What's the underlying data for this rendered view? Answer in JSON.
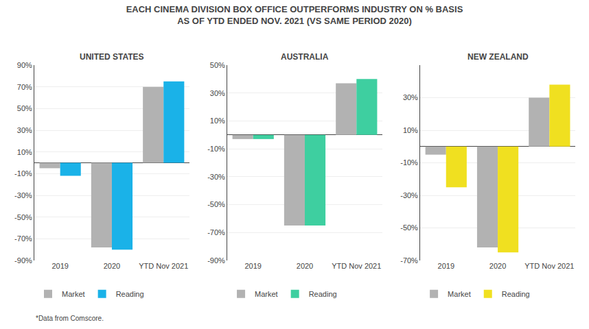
{
  "title": "EACH CINEMA DIVISION BOX OFFICE OUTPERFORMS INDUSTRY ON % BASIS",
  "subtitle": "AS OF YTD ENDED NOV. 2021 (VS SAME PERIOD 2020)",
  "annotations": [
    "*Data from Comscore."
  ],
  "chart_data": [
    {
      "type": "bar",
      "title": "UNITED STATES",
      "categories": [
        "2019",
        "2020",
        "YTD Nov 2021"
      ],
      "series": [
        {
          "name": "Market",
          "color": "#b2b2b2",
          "values": [
            -5,
            -78,
            70
          ]
        },
        {
          "name": "Reading",
          "color": "#1ab2e8",
          "values": [
            -12,
            -80,
            75
          ]
        }
      ],
      "ylim": [
        -90,
        90
      ],
      "yticks": [
        {
          "value": -90,
          "label": "-90%"
        },
        {
          "value": -70,
          "label": "-70%"
        },
        {
          "value": -50,
          "label": "-50%"
        },
        {
          "value": -30,
          "label": "-30%"
        },
        {
          "value": -10,
          "label": "-10%"
        },
        {
          "value": 10,
          "label": "10%"
        },
        {
          "value": 30,
          "label": "30%"
        },
        {
          "value": 50,
          "label": "50%"
        },
        {
          "value": 70,
          "label": "70%"
        },
        {
          "value": 90,
          "label": "90%"
        }
      ],
      "grid": true,
      "legend": "bottom"
    },
    {
      "type": "bar",
      "title": "AUSTRALIA",
      "categories": [
        "2019",
        "2020",
        "YTD Nov 2021"
      ],
      "series": [
        {
          "name": "Market",
          "color": "#b2b2b2",
          "values": [
            -3,
            -65,
            37
          ]
        },
        {
          "name": "Reading",
          "color": "#3ecfa0",
          "values": [
            -3,
            -65,
            40
          ]
        }
      ],
      "ylim": [
        -90,
        50
      ],
      "yticks": [
        {
          "value": -90,
          "label": "-90%"
        },
        {
          "value": -70,
          "label": "-70%"
        },
        {
          "value": -50,
          "label": "-50%"
        },
        {
          "value": -30,
          "label": "-30%"
        },
        {
          "value": -10,
          "label": "-10%"
        },
        {
          "value": 10,
          "label": "10%"
        },
        {
          "value": 30,
          "label": "30%"
        },
        {
          "value": 50,
          "label": "50%"
        }
      ],
      "grid": true,
      "legend": "bottom"
    },
    {
      "type": "bar",
      "title": "NEW ZEALAND",
      "categories": [
        "2019",
        "2020",
        "YTD Nov 2021"
      ],
      "series": [
        {
          "name": "Market",
          "color": "#b2b2b2",
          "values": [
            -5,
            -62,
            30
          ]
        },
        {
          "name": "Reading",
          "color": "#f0e020",
          "values": [
            -25,
            -65,
            38
          ]
        }
      ],
      "ylim": [
        -70,
        50
      ],
      "yticks": [
        {
          "value": -70,
          "label": "-70%"
        },
        {
          "value": -50,
          "label": "-50%"
        },
        {
          "value": -30,
          "label": "-30%"
        },
        {
          "value": -10,
          "label": "-10%"
        },
        {
          "value": 10,
          "label": "10%"
        },
        {
          "value": 30,
          "label": "30%"
        }
      ],
      "grid": true,
      "legend": "bottom"
    }
  ]
}
